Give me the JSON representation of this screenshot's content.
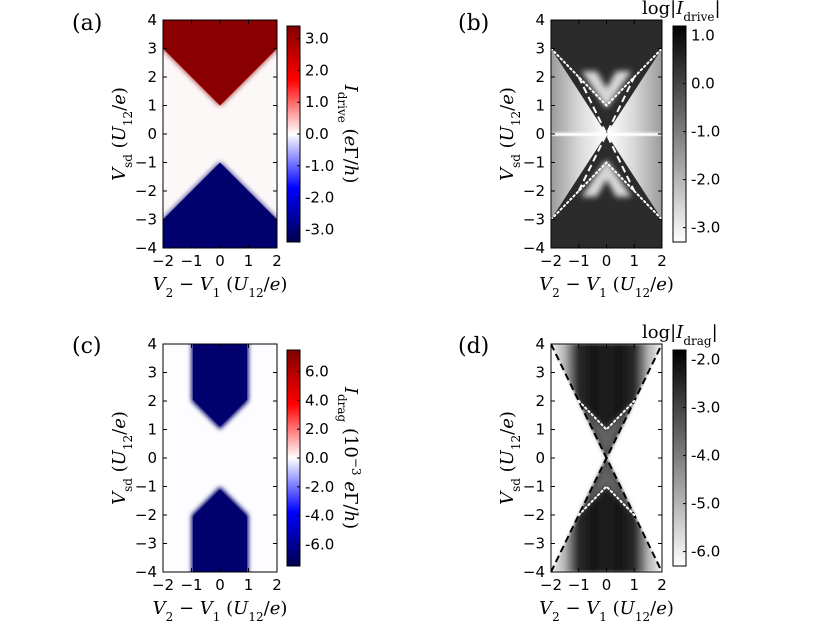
{
  "figure": {
    "panels": [
      {
        "label": "(a)"
      },
      {
        "label": "(b)"
      },
      {
        "label": "(c)"
      },
      {
        "label": "(d)"
      }
    ]
  },
  "chart_data": [
    {
      "id": "a",
      "type": "heatmap",
      "panel_label": "(a)",
      "xlabel": "V2 − V1 (U12/e)",
      "ylabel": "Vsd (U12/e)",
      "xlim": [
        -2,
        2
      ],
      "ylim": [
        -4,
        4
      ],
      "xticks": [
        -2,
        -1,
        0,
        1,
        2
      ],
      "yticks": [
        -4,
        -3,
        -2,
        -1,
        0,
        1,
        2,
        3,
        4
      ],
      "xtick_labels": [
        "−2",
        "−1",
        "0",
        "1",
        "2"
      ],
      "ytick_labels": [
        "−4",
        "−3",
        "−2",
        "−1",
        "0",
        "1",
        "2",
        "3",
        "4"
      ],
      "colormap": "seismic",
      "colorbar": {
        "label": "I_drive (eΓ/h)",
        "range": [
          -3.4,
          3.4
        ],
        "ticks": [
          3.0,
          2.0,
          1.0,
          0.0,
          -1.0,
          -2.0,
          -3.0
        ],
        "tick_labels": [
          "3.0",
          "2.0",
          "1.0",
          "0.0",
          "-1.0",
          "-2.0",
          "-3.0"
        ]
      },
      "regions": [
        {
          "name": "positive",
          "value": 3.4,
          "color": "#8b0000",
          "boundary": "Vsd > 1 + |V2 − V1|"
        },
        {
          "name": "negative",
          "value": -3.4,
          "color": "#00006e",
          "boundary": "Vsd < −1 − |V2 − V1|"
        },
        {
          "name": "zero",
          "value": 0,
          "color": "#fdf8f8"
        }
      ]
    },
    {
      "id": "b",
      "type": "heatmap",
      "panel_label": "(b)",
      "xlabel": "V2 − V1 (U12/e)",
      "ylabel": "Vsd (U12/e)",
      "xlim": [
        -2,
        2
      ],
      "ylim": [
        -4,
        4
      ],
      "xticks": [
        -2,
        -1,
        0,
        1,
        2
      ],
      "yticks": [
        -4,
        -3,
        -2,
        -1,
        0,
        1,
        2,
        3,
        4
      ],
      "xtick_labels": [
        "−2",
        "−1",
        "0",
        "1",
        "2"
      ],
      "ytick_labels": [
        "−4",
        "−3",
        "−2",
        "−1",
        "0",
        "1",
        "2",
        "3",
        "4"
      ],
      "colormap": "gray_r",
      "colorbar": {
        "label": "log|I_drive|",
        "range": [
          -3.3,
          1.2
        ],
        "ticks": [
          1.0,
          0.0,
          -1.0,
          -2.0,
          -3.0
        ],
        "tick_labels": [
          "1.0",
          "0.0",
          "-1.0",
          "-2.0",
          "-3.0"
        ]
      },
      "lines": [
        {
          "style": "dotted",
          "color": "#ffffff",
          "points": [
            [
              -2,
              3
            ],
            [
              0,
              1
            ],
            [
              2,
              3
            ]
          ]
        },
        {
          "style": "dotted",
          "color": "#ffffff",
          "points": [
            [
              -2,
              -3
            ],
            [
              0,
              -1
            ],
            [
              2,
              -3
            ]
          ]
        },
        {
          "style": "dashed",
          "color": "#ffffff",
          "points": [
            [
              -1,
              2
            ],
            [
              0,
              0
            ],
            [
              1,
              2
            ]
          ]
        },
        {
          "style": "dashed",
          "color": "#ffffff",
          "points": [
            [
              -1,
              -2
            ],
            [
              0,
              0
            ],
            [
              1,
              -2
            ]
          ]
        }
      ]
    },
    {
      "id": "c",
      "type": "heatmap",
      "panel_label": "(c)",
      "xlabel": "V2 − V1 (U12/e)",
      "ylabel": "Vsd (U12/e)",
      "xlim": [
        -2,
        2
      ],
      "ylim": [
        -4,
        4
      ],
      "xticks": [
        -2,
        -1,
        0,
        1,
        2
      ],
      "yticks": [
        -4,
        -3,
        -2,
        -1,
        0,
        1,
        2,
        3,
        4
      ],
      "xtick_labels": [
        "−2",
        "−1",
        "0",
        "1",
        "2"
      ],
      "ytick_labels": [
        "−4",
        "−3",
        "−2",
        "−1",
        "0",
        "1",
        "2",
        "3",
        "4"
      ],
      "colormap": "seismic",
      "colorbar": {
        "label": "I_drag (10^−3 eΓ/h)",
        "range": [
          -7.5,
          7.5
        ],
        "ticks": [
          6.0,
          4.0,
          2.0,
          0.0,
          -2.0,
          -4.0,
          -6.0
        ],
        "tick_labels": [
          "6.0",
          "4.0",
          "2.0",
          "0.0",
          "-2.0",
          "-4.0",
          "-6.0"
        ]
      },
      "regions": [
        {
          "name": "negative-upper",
          "value": -7.5,
          "color": "#00006e",
          "boundary": "|V2 − V1| < 1 and Vsd > 1 + |V2 − V1|"
        },
        {
          "name": "negative-lower",
          "value": -7.5,
          "color": "#00006e",
          "boundary": "|V2 − V1| < 1 and Vsd < −1 − |V2 − V1|"
        },
        {
          "name": "zero",
          "value": 0,
          "color": "#fdfdff"
        }
      ]
    },
    {
      "id": "d",
      "type": "heatmap",
      "panel_label": "(d)",
      "xlabel": "V2 − V1 (U12/e)",
      "ylabel": "Vsd (U12/e)",
      "xlim": [
        -2,
        2
      ],
      "ylim": [
        -4,
        4
      ],
      "xticks": [
        -2,
        -1,
        0,
        1,
        2
      ],
      "yticks": [
        -4,
        -3,
        -2,
        -1,
        0,
        1,
        2,
        3,
        4
      ],
      "xtick_labels": [
        "−2",
        "−1",
        "0",
        "1",
        "2"
      ],
      "ytick_labels": [
        "−4",
        "−3",
        "−2",
        "−1",
        "0",
        "1",
        "2",
        "3",
        "4"
      ],
      "colormap": "gray_r",
      "colorbar": {
        "label": "log|I_drag|",
        "range": [
          -6.3,
          -1.8
        ],
        "ticks": [
          -2.0,
          -3.0,
          -4.0,
          -5.0,
          -6.0
        ],
        "tick_labels": [
          "-2.0",
          "-3.0",
          "-4.0",
          "-5.0",
          "-6.0"
        ]
      },
      "lines": [
        {
          "style": "dashed",
          "color": "#000000",
          "points": [
            [
              -2,
              4
            ],
            [
              0,
              0
            ],
            [
              2,
              4
            ]
          ]
        },
        {
          "style": "dashed",
          "color": "#000000",
          "points": [
            [
              -2,
              -4
            ],
            [
              0,
              0
            ],
            [
              2,
              -4
            ]
          ]
        },
        {
          "style": "dotted",
          "color": "#ffffff",
          "points": [
            [
              -1,
              2
            ],
            [
              0,
              1
            ],
            [
              1,
              2
            ]
          ]
        },
        {
          "style": "dotted",
          "color": "#ffffff",
          "points": [
            [
              -1,
              -2
            ],
            [
              0,
              -1
            ],
            [
              1,
              -2
            ]
          ]
        }
      ]
    }
  ]
}
